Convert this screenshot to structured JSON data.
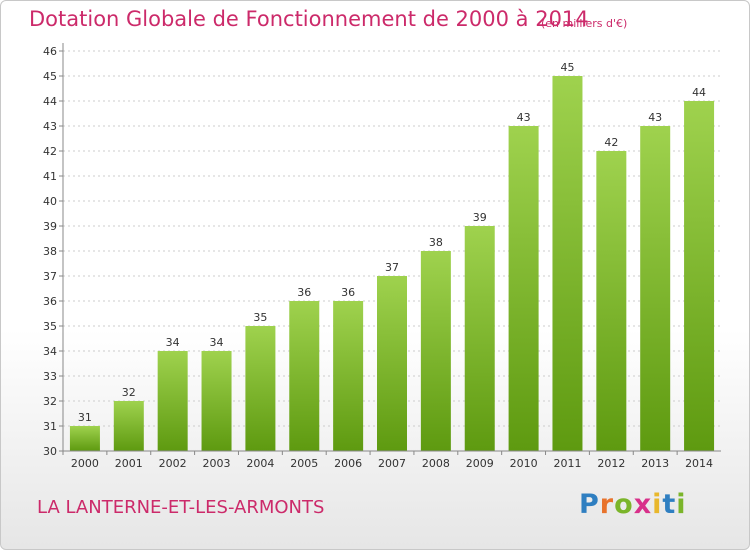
{
  "chart_data": {
    "type": "bar",
    "title": "Dotation Globale de Fonctionnement de 2000 à 2014",
    "subtitle": "(en milliers d'€)",
    "categories": [
      "2000",
      "2001",
      "2002",
      "2003",
      "2004",
      "2005",
      "2006",
      "2007",
      "2008",
      "2009",
      "2010",
      "2011",
      "2012",
      "2013",
      "2014"
    ],
    "values": [
      31,
      32,
      34,
      34,
      35,
      36,
      36,
      37,
      38,
      39,
      43,
      45,
      42,
      43,
      44
    ],
    "data_labels": [
      "31",
      "32",
      "34",
      "34",
      "35",
      "36",
      "36",
      "37",
      "38",
      "39",
      "43",
      "45",
      "42",
      "43",
      "44"
    ],
    "yticks": [
      "30",
      "31",
      "32",
      "33",
      "34",
      "35",
      "36",
      "37",
      "38",
      "39",
      "40",
      "41",
      "42",
      "43",
      "44",
      "45",
      "46"
    ],
    "ylim": [
      30,
      46
    ],
    "xlabel": "",
    "ylabel": "",
    "grid": true,
    "bar_color_top": "#9fd24e",
    "bar_color_bottom": "#5e9a10",
    "grid_color": "#cccccc"
  },
  "footer": {
    "commune": "LA LANTERNE-ET-LES-ARMONTS",
    "logo_letters": [
      "P",
      "r",
      "o",
      "x",
      "i",
      "t",
      "i"
    ],
    "logo_colors": [
      "#2f7fc1",
      "#e8732c",
      "#7bb52a",
      "#d8308a",
      "#e8b72c",
      "#2f7fc1",
      "#7bb52a"
    ]
  },
  "colors": {
    "title": "#cc2a6a"
  }
}
